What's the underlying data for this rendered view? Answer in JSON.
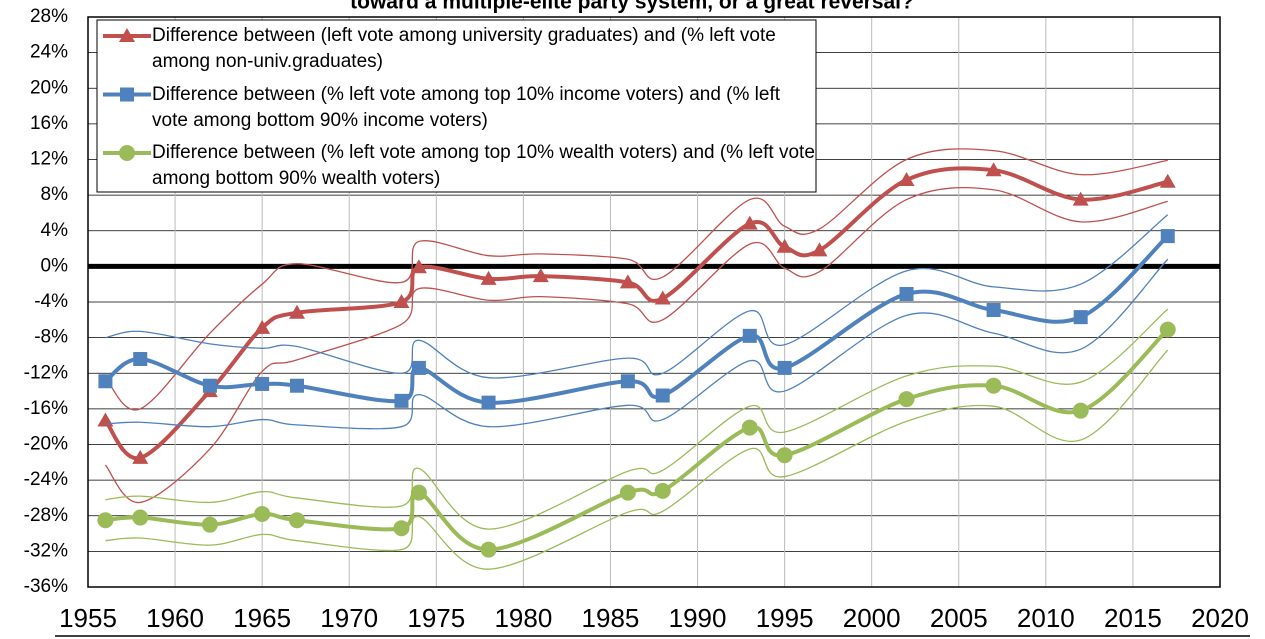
{
  "chart_data": {
    "type": "line",
    "title": "toward a multiple-elite party system, or a great reversal?",
    "xlim": [
      1955,
      2020
    ],
    "xticks": [
      1955,
      1960,
      1965,
      1970,
      1975,
      1980,
      1985,
      1990,
      1995,
      2000,
      2005,
      2010,
      2015,
      2020
    ],
    "ylim": [
      -36,
      28
    ],
    "yticks": [
      {
        "value": -36,
        "label": "-36%"
      },
      {
        "value": -32,
        "label": "-32%"
      },
      {
        "value": -28,
        "label": "-28%"
      },
      {
        "value": -24,
        "label": "-24%"
      },
      {
        "value": -20,
        "label": "-20%"
      },
      {
        "value": -16,
        "label": "-16%"
      },
      {
        "value": -12,
        "label": "-12%"
      },
      {
        "value": -8,
        "label": "-8%"
      },
      {
        "value": -4,
        "label": "-4%"
      },
      {
        "value": 0,
        "label": "0%"
      },
      {
        "value": 4,
        "label": "4%"
      },
      {
        "value": 8,
        "label": "8%"
      },
      {
        "value": 12,
        "label": "12%"
      },
      {
        "value": 16,
        "label": "16%"
      },
      {
        "value": 20,
        "label": "20%"
      },
      {
        "value": 24,
        "label": "24%"
      },
      {
        "value": 28,
        "label": "28%"
      }
    ],
    "grid": true,
    "legend": "upper left",
    "series": [
      {
        "name": "Difference between (left vote among university graduates) and (% left vote among non-univ.graduates)",
        "color": "#c0504d",
        "marker": "triangle",
        "x": [
          1956,
          1958,
          1962,
          1965,
          1967,
          1973,
          1974,
          1978,
          1981,
          1986,
          1988,
          1993,
          1995,
          1997,
          2002,
          2007,
          2012,
          2017
        ],
        "values": [
          -17.3,
          -21.5,
          -14,
          -6.9,
          -5.2,
          -4,
          -0.1,
          -1.4,
          -1.1,
          -1.8,
          -3.6,
          4.8,
          2.2,
          1.8,
          9.7,
          10.8,
          7.5,
          9.5
        ],
        "upper": [
          -12.5,
          -16,
          -7.5,
          -2,
          0.3,
          -1.8,
          2.8,
          1.2,
          1.4,
          0.8,
          -1.2,
          7.5,
          4.5,
          4.2,
          12,
          13,
          10.3,
          11.9
        ],
        "lower": [
          -22.3,
          -26.5,
          -20.5,
          -11.8,
          -10.5,
          -6.5,
          -2.5,
          -3.8,
          -3.4,
          -4.2,
          -6,
          2.5,
          -0.2,
          -0.6,
          7.5,
          8.6,
          5,
          7.3
        ]
      },
      {
        "name": "Difference between (% left vote among top 10% income voters) and (% left vote among bottom 90% income voters)",
        "color": "#4f81bd",
        "marker": "square",
        "x": [
          1956,
          1958,
          1962,
          1965,
          1967,
          1973,
          1974,
          1978,
          1986,
          1988,
          1993,
          1995,
          2002,
          2007,
          2012,
          2017
        ],
        "values": [
          -12.9,
          -10.4,
          -13.4,
          -13.2,
          -13.4,
          -15.1,
          -11.4,
          -15.3,
          -12.9,
          -14.5,
          -7.8,
          -11.4,
          -3.1,
          -4.9,
          -5.7,
          3.4
        ],
        "upper": [
          -8,
          -7.3,
          -8.7,
          -9.2,
          -9,
          -12,
          -8.3,
          -12.5,
          -10.3,
          -12,
          -5,
          -8.8,
          -0.5,
          -2.3,
          -2,
          5.8
        ],
        "lower": [
          -17.7,
          -17.5,
          -18,
          -17.2,
          -17.8,
          -18,
          -14.4,
          -18,
          -15.6,
          -17.2,
          -10.6,
          -14,
          -5.5,
          -7.5,
          -9.3,
          0.8
        ]
      },
      {
        "name": "Difference between (% left vote among top 10% wealth voters) and (% left vote among bottom 90% wealth voters)",
        "color": "#9bbb59",
        "marker": "circle",
        "x": [
          1956,
          1958,
          1962,
          1965,
          1967,
          1973,
          1974,
          1978,
          1986,
          1988,
          1993,
          1995,
          2002,
          2007,
          2012,
          2017
        ],
        "values": [
          -28.5,
          -28.2,
          -29,
          -27.8,
          -28.5,
          -29.4,
          -25.4,
          -31.8,
          -25.4,
          -25.2,
          -18.1,
          -21.2,
          -14.9,
          -13.4,
          -16.2,
          -7.1
        ],
        "upper": [
          -26.2,
          -25.8,
          -26.5,
          -25.3,
          -26,
          -26.9,
          -22.7,
          -29.5,
          -23,
          -22.9,
          -15.7,
          -18.6,
          -12.3,
          -11.2,
          -13,
          -4.8
        ],
        "lower": [
          -30.8,
          -30.5,
          -31.3,
          -30.1,
          -30.8,
          -31.8,
          -28.1,
          -34,
          -27.6,
          -27.5,
          -20.5,
          -23.6,
          -17.4,
          -15.7,
          -19.5,
          -9.4
        ]
      }
    ]
  }
}
